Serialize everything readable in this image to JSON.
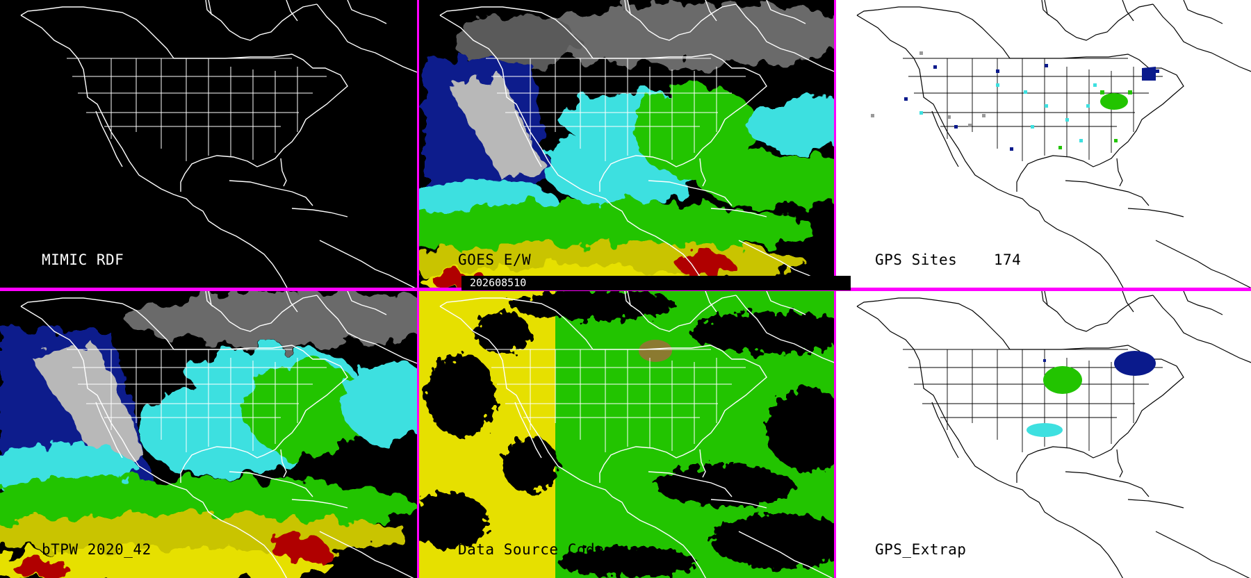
{
  "panels": {
    "mimic_rdf": {
      "label": "MIMIC RDF"
    },
    "goes_ew": {
      "label": "GOES E/W"
    },
    "gps_sites": {
      "label": "GPS Sites    174"
    },
    "btpw": {
      "label": "bTPW 2020_42"
    },
    "data_source": {
      "label": "Data Source Code"
    },
    "gps_extrap": {
      "label": "GPS_Extrap"
    }
  },
  "timestamp": "202608510",
  "colors": {
    "divider": "#ff00ff",
    "black_bg": "#000000",
    "white_bg": "#ffffff",
    "tpw_dark_blue": "#0a1a8c",
    "tpw_cyan": "#3ee0e0",
    "tpw_green": "#22c400",
    "tpw_yellow": "#e6e000",
    "tpw_red": "#b00000",
    "tpw_gray": "#b8b8b8"
  }
}
